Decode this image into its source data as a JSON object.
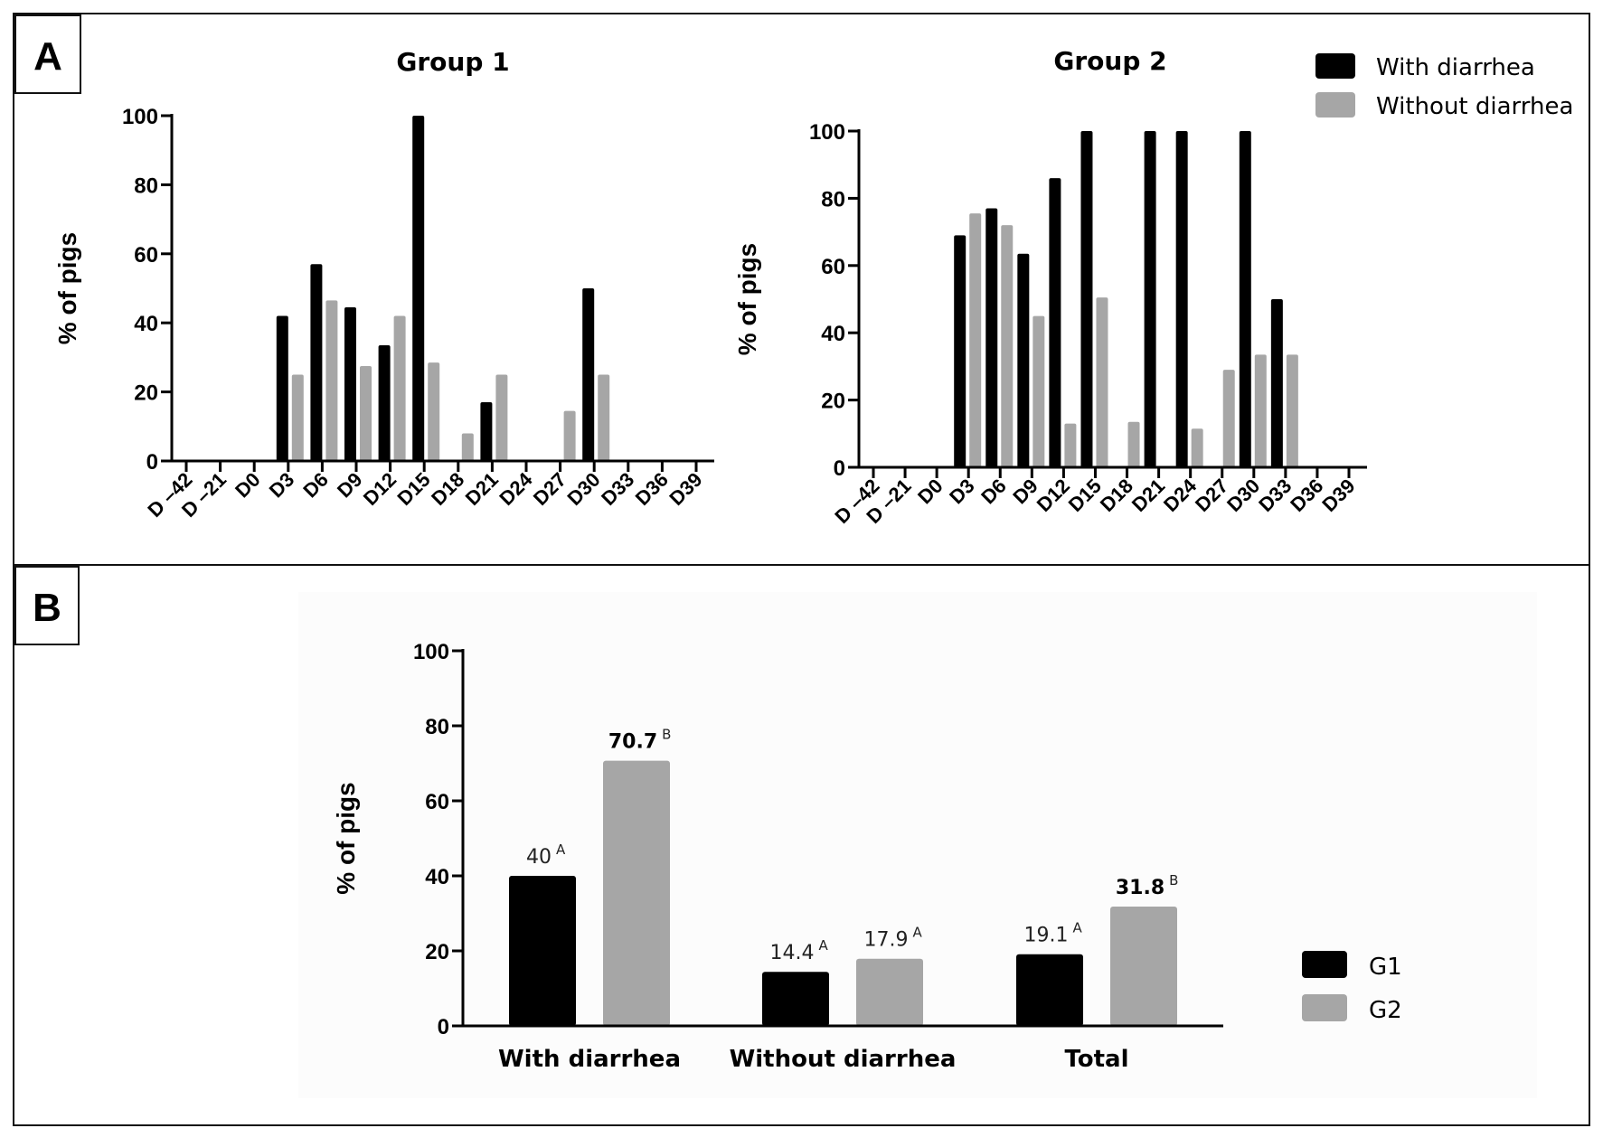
{
  "panels": {
    "a_letter": "A",
    "b_letter": "B"
  },
  "colors": {
    "series1": "#000000",
    "series2": "#a6a6a6"
  },
  "legend_a": {
    "items": [
      {
        "label": "With diarrhea",
        "color": "#000000"
      },
      {
        "label": "Without diarrhea",
        "color": "#a6a6a6"
      }
    ]
  },
  "legend_b": {
    "items": [
      {
        "label": "G1",
        "color": "#000000"
      },
      {
        "label": "G2",
        "color": "#a6a6a6"
      }
    ]
  },
  "chart_data": [
    {
      "id": "group1",
      "type": "bar",
      "title": "Group 1",
      "ylabel": "% of pigs",
      "xlabel": "",
      "ylim": [
        0,
        100
      ],
      "yticks": [
        0,
        20,
        40,
        60,
        80,
        100
      ],
      "categories": [
        "D –42",
        "D –21",
        "D0",
        "D3",
        "D6",
        "D9",
        "D12",
        "D15",
        "D18",
        "D21",
        "D24",
        "D27",
        "D30",
        "D33",
        "D36",
        "D39"
      ],
      "series": [
        {
          "name": "With diarrhea",
          "values": [
            0,
            0,
            0,
            42,
            57,
            44.5,
            33.5,
            100,
            0,
            17,
            0,
            0,
            50,
            0,
            0,
            0
          ]
        },
        {
          "name": "Without diarrhea",
          "values": [
            0,
            0,
            0,
            25,
            46.5,
            27.5,
            42,
            28.5,
            8,
            25,
            0,
            14.5,
            25,
            0,
            0,
            0
          ]
        }
      ]
    },
    {
      "id": "group2",
      "type": "bar",
      "title": "Group 2",
      "ylabel": "% of pigs",
      "xlabel": "",
      "ylim": [
        0,
        100
      ],
      "yticks": [
        0,
        20,
        40,
        60,
        80,
        100
      ],
      "categories": [
        "D –42",
        "D –21",
        "D0",
        "D3",
        "D6",
        "D9",
        "D12",
        "D15",
        "D18",
        "D21",
        "D24",
        "D27",
        "D30",
        "D33",
        "D36",
        "D39"
      ],
      "series": [
        {
          "name": "With diarrhea",
          "values": [
            0,
            0,
            0,
            69,
            77,
            63.5,
            86,
            100,
            0,
            100,
            100,
            0,
            100,
            50,
            0,
            0
          ]
        },
        {
          "name": "Without diarrhea",
          "values": [
            0,
            0,
            0,
            75.5,
            72,
            45,
            13,
            50.5,
            13.5,
            0,
            11.5,
            29,
            33.5,
            33.5,
            0,
            0
          ]
        }
      ]
    },
    {
      "id": "summary",
      "type": "bar",
      "title": "",
      "ylabel": "% of pigs",
      "xlabel": "",
      "ylim": [
        0,
        100
      ],
      "yticks": [
        0,
        20,
        40,
        60,
        80,
        100
      ],
      "categories": [
        "With diarrhea",
        "Without diarrhea",
        "Total"
      ],
      "series": [
        {
          "name": "G1",
          "values": [
            40,
            14.4,
            19.1
          ],
          "labels": [
            "40",
            "14.4",
            "19.1"
          ],
          "sups": [
            "A",
            "A",
            "A"
          ],
          "bold": [
            false,
            false,
            false
          ]
        },
        {
          "name": "G2",
          "values": [
            70.7,
            17.9,
            31.8
          ],
          "labels": [
            "70.7",
            "17.9",
            "31.8"
          ],
          "sups": [
            "B",
            "A",
            "B"
          ],
          "bold": [
            true,
            false,
            true
          ]
        }
      ]
    }
  ]
}
